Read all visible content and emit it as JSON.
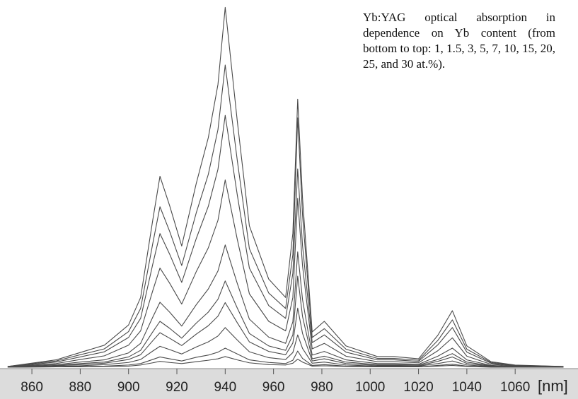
{
  "chart_data": {
    "type": "line",
    "annotation": "Yb:YAG optical absorption in dependence on Yb content (from bottom to top: 1, 1.5, 3, 5, 7, 10, 15, 20, 25, and 30 at.%).",
    "x_label": "[nm]",
    "x": [
      850,
      870,
      880,
      890,
      900,
      905,
      910,
      913,
      917,
      922,
      928,
      933,
      937,
      940,
      945,
      950,
      958,
      965,
      968,
      970,
      972,
      976,
      981,
      990,
      1003,
      1010,
      1020,
      1028,
      1034,
      1040,
      1050,
      1060,
      1080
    ],
    "color": "#4a4a4a",
    "series": [
      {
        "values": [
          0,
          0.1,
          0.1,
          0.2,
          0.3,
          0.6,
          1.2,
          1.6,
          1.3,
          1,
          1.5,
          1.9,
          2.3,
          2.9,
          2,
          1.2,
          0.7,
          0.6,
          1.1,
          2.2,
          1.4,
          0.3,
          0.4,
          0.2,
          0.1,
          0.1,
          0.1,
          0.3,
          0.5,
          0.2,
          0,
          0,
          0
        ]
      },
      {
        "values": [
          0,
          0.1,
          0.2,
          0.3,
          0.6,
          1,
          2.1,
          2.8,
          2.3,
          1.7,
          2.7,
          3.3,
          4.1,
          5.2,
          3.6,
          2,
          1.3,
          1,
          1.9,
          4.4,
          2.4,
          0.5,
          0.7,
          0.3,
          0.2,
          0.2,
          0.1,
          0.5,
          0.8,
          0.3,
          0.1,
          0,
          0
        ]
      },
      {
        "values": [
          0,
          0.2,
          0.4,
          0.7,
          1.3,
          2.1,
          4.4,
          5.7,
          4.8,
          3.6,
          5.5,
          6.9,
          8.5,
          10.8,
          7.4,
          4.2,
          2.6,
          2.1,
          4,
          8.8,
          5.1,
          1.1,
          1.4,
          0.6,
          0.3,
          0.3,
          0.3,
          1,
          1.7,
          0.6,
          0.2,
          0.1,
          0
        ]
      },
      {
        "values": [
          0,
          0.4,
          0.7,
          1.1,
          2.1,
          3.4,
          7.2,
          9.4,
          7.9,
          5.9,
          9,
          11.3,
          13.9,
          17.6,
          12.1,
          6.9,
          4.3,
          3.4,
          6.6,
          16.1,
          9.2,
          1.7,
          2.3,
          1,
          0.5,
          0.5,
          0.4,
          1.6,
          2.8,
          1,
          0.3,
          0.1,
          0
        ]
      },
      {
        "values": [
          0,
          0.5,
          1,
          1.4,
          2.8,
          4.6,
          9.6,
          12.5,
          10.6,
          7.9,
          12,
          15,
          18.5,
          23.5,
          16.1,
          9.2,
          5.8,
          4.6,
          8.8,
          24.8,
          13.8,
          2.3,
          3,
          1.4,
          0.7,
          0.7,
          0.6,
          2.1,
          3.7,
          1.4,
          0.4,
          0.1,
          0
        ]
      },
      {
        "values": [
          0.1,
          0.7,
          1.4,
          2,
          3.9,
          6.5,
          13.6,
          17.7,
          15,
          11.2,
          17,
          21.3,
          26.2,
          33.3,
          22.8,
          13.1,
          8.2,
          6.5,
          12.4,
          31.4,
          18.4,
          3.3,
          4.3,
          2,
          1,
          1,
          0.8,
          3,
          5.2,
          2,
          0.5,
          0.2,
          0.1
        ]
      },
      {
        "values": [
          0.1,
          1,
          2.1,
          3.1,
          6,
          9.9,
          20.8,
          27,
          22.9,
          17.2,
          26,
          32.5,
          40,
          51,
          34.8,
          20,
          12.5,
          9.9,
          19,
          46,
          27.6,
          5,
          6.5,
          3,
          1.5,
          1.5,
          1.2,
          4.5,
          8,
          3,
          0.8,
          0.3,
          0.1
        ]
      },
      {
        "values": [
          0.1,
          1.4,
          2.8,
          4.2,
          8.1,
          13.3,
          28,
          36.4,
          30.8,
          23.1,
          35,
          43.8,
          53.9,
          68.6,
          46.9,
          27,
          16.8,
          13.3,
          25.6,
          54,
          33.1,
          6.7,
          8.8,
          4.1,
          2,
          2,
          1.6,
          6.1,
          10.8,
          4.1,
          1.1,
          0.4,
          0.1
        ]
      },
      {
        "values": [
          0.2,
          1.7,
          3.4,
          5,
          9.7,
          16,
          33.6,
          43.7,
          37,
          27.7,
          42,
          52.5,
          64.7,
          82.3,
          56.3,
          32.3,
          20.2,
          16,
          30.7,
          67.9,
          41.4,
          8.1,
          10.5,
          4.9,
          2.4,
          2.4,
          1.9,
          7.3,
          12.9,
          4.9,
          1.3,
          0.5,
          0.2
        ]
      },
      {
        "values": [
          0.2,
          2,
          4,
          6,
          11.5,
          19,
          40,
          52,
          44,
          33,
          50,
          62.5,
          77,
          98,
          67,
          38.5,
          24,
          19,
          36.5,
          73,
          46,
          9.6,
          12.5,
          5.8,
          2.9,
          2.9,
          2.3,
          8.7,
          15.4,
          5.8,
          1.5,
          0.6,
          0.2
        ]
      }
    ],
    "xlim": [
      846.8,
      1086
    ],
    "xticks": [
      860,
      880,
      900,
      920,
      940,
      960,
      980,
      1000,
      1020,
      1040,
      1060
    ],
    "ylim": [
      0,
      100
    ]
  }
}
